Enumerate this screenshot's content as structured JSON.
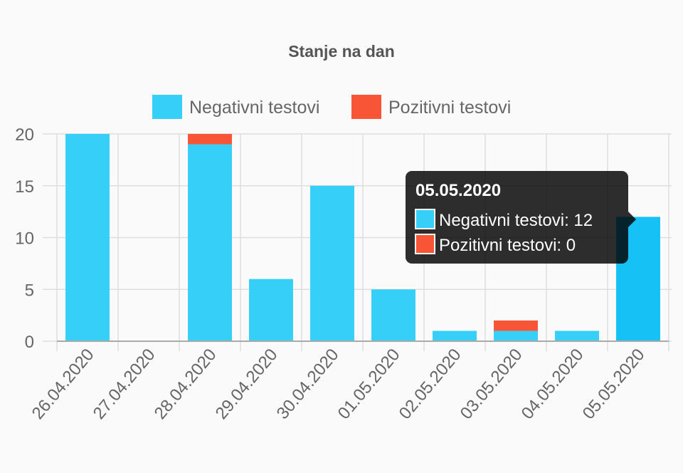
{
  "chart_data": {
    "type": "bar",
    "stacked": true,
    "title": "Stanje na dan",
    "categories": [
      "26.04.2020",
      "27.04.2020",
      "28.04.2020",
      "29.04.2020",
      "30.04.2020",
      "01.05.2020",
      "02.05.2020",
      "03.05.2020",
      "04.05.2020",
      "05.05.2020"
    ],
    "series": [
      {
        "name": "Negativni testovi",
        "color": "#36cff7",
        "values": [
          20,
          0,
          19,
          6,
          15,
          5,
          1,
          1,
          1,
          12
        ]
      },
      {
        "name": "Pozitivni testovi",
        "color": "#f75536",
        "values": [
          0,
          0,
          1,
          0,
          0,
          0,
          0,
          1,
          0,
          0
        ]
      }
    ],
    "ylim": [
      0,
      20
    ],
    "yticks": [
      0,
      5,
      10,
      15,
      20
    ],
    "grid": true,
    "legend": "top",
    "highlight_color": "#16c2f5",
    "tooltip": {
      "category_index": 9,
      "title": "05.05.2020",
      "lines": [
        "Negativni testovi: 12",
        "Pozitivni testovi: 0"
      ]
    }
  }
}
